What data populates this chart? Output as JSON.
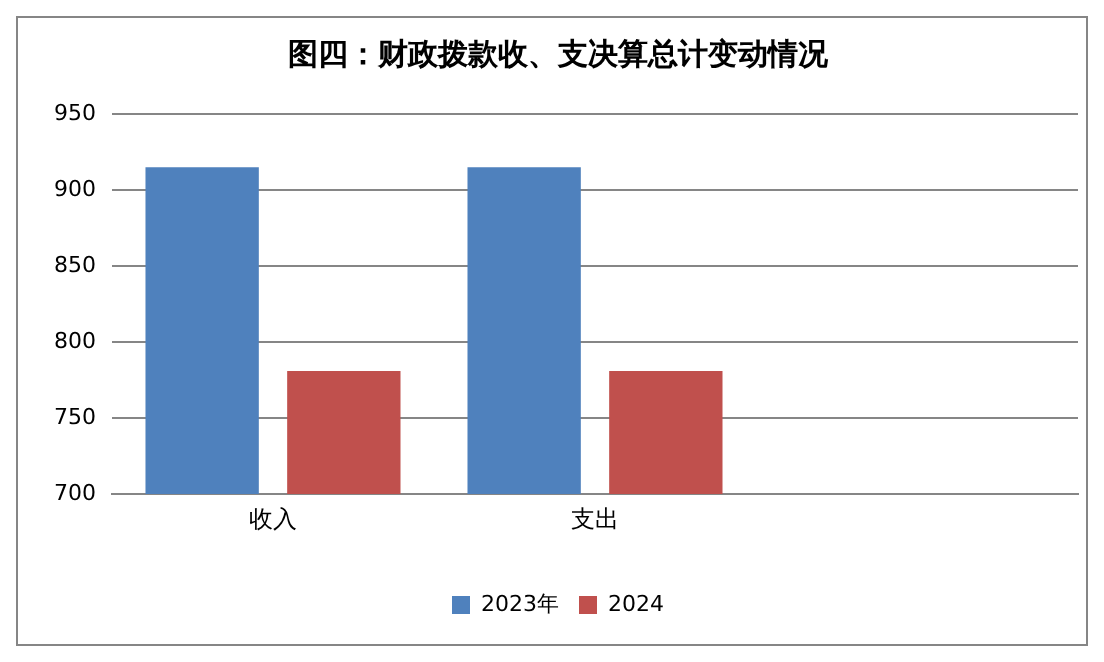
{
  "chart_data": {
    "type": "bar",
    "title": "图四：财政拨款收、支决算总计变动情况",
    "categories": [
      "收入",
      "支出",
      null
    ],
    "series": [
      {
        "name": "2023年",
        "color": "#4f81bd",
        "values": [
          915,
          915,
          null
        ]
      },
      {
        "name": "2024",
        "color": "#c0504d",
        "values": [
          781,
          781,
          null
        ]
      }
    ],
    "ylim": [
      700,
      950
    ],
    "yticks": [
      700,
      750,
      800,
      850,
      900,
      950
    ],
    "grid": "y",
    "legend": "bottom"
  }
}
